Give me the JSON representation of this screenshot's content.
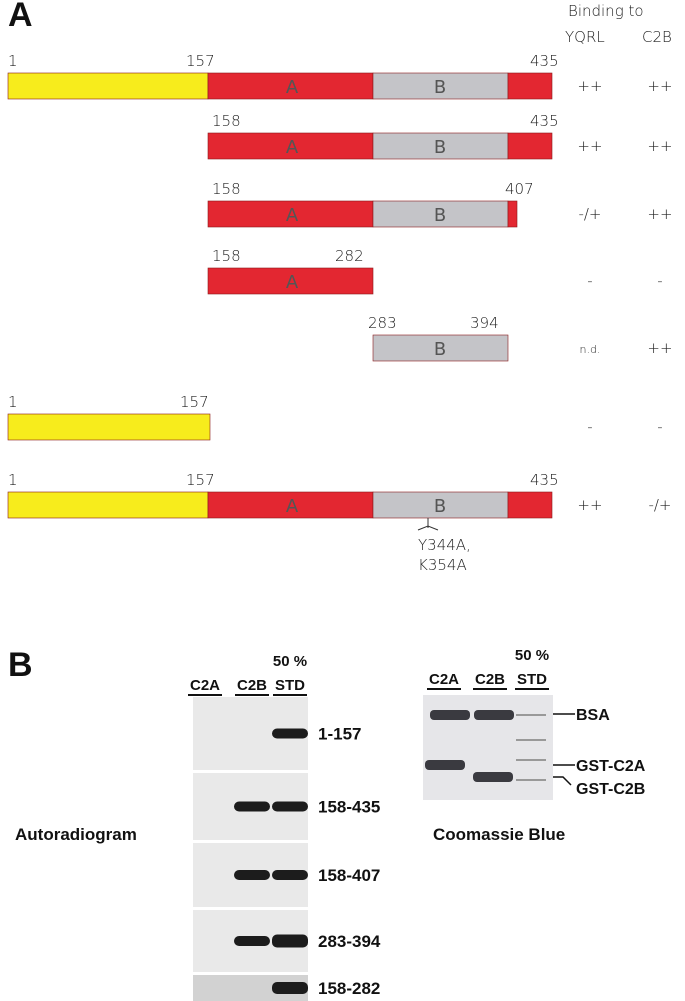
{
  "panel_a": {
    "label": "A",
    "header": {
      "title": "Binding to",
      "columns": [
        "YQRL",
        "C2B"
      ]
    },
    "constructs": [
      {
        "residues": [
          "1",
          "157",
          "435"
        ],
        "domains": [
          "A",
          "B"
        ],
        "binding": [
          "++",
          "++"
        ]
      },
      {
        "residues": [
          "158",
          "435"
        ],
        "domains": [
          "A",
          "B"
        ],
        "binding": [
          "++",
          "++"
        ]
      },
      {
        "residues": [
          "158",
          "407"
        ],
        "domains": [
          "A",
          "B"
        ],
        "binding": [
          "-/+",
          "++"
        ]
      },
      {
        "residues": [
          "158",
          "282"
        ],
        "domains": [
          "A"
        ],
        "binding": [
          "-",
          "-"
        ]
      },
      {
        "residues": [
          "283",
          "394"
        ],
        "domains": [
          "B"
        ],
        "binding": [
          "n.d.",
          "++"
        ]
      },
      {
        "residues": [
          "1",
          "157"
        ],
        "domains": [],
        "binding": [
          "-",
          "-"
        ]
      },
      {
        "residues": [
          "1",
          "157",
          "435"
        ],
        "domains": [
          "A",
          "B"
        ],
        "binding": [
          "++",
          "-/+"
        ],
        "mutation": [
          "Y344A,",
          "K354A"
        ]
      }
    ]
  },
  "panel_b": {
    "label": "B",
    "autoradiogram": {
      "lanes": [
        [
          "C2A"
        ],
        [
          "C2B"
        ],
        [
          "50 %",
          "STD"
        ]
      ],
      "constructs": [
        "1-157",
        "158-435",
        "158-407",
        "283-394",
        "158-282"
      ],
      "caption": "Autoradiogram"
    },
    "coomassie": {
      "lanes": [
        [
          "C2A"
        ],
        [
          "C2B"
        ],
        [
          "50 %",
          "STD"
        ]
      ],
      "bands": [
        "BSA",
        "GST-C2A",
        "GST-C2B"
      ],
      "caption": "Coomassie Blue"
    }
  }
}
